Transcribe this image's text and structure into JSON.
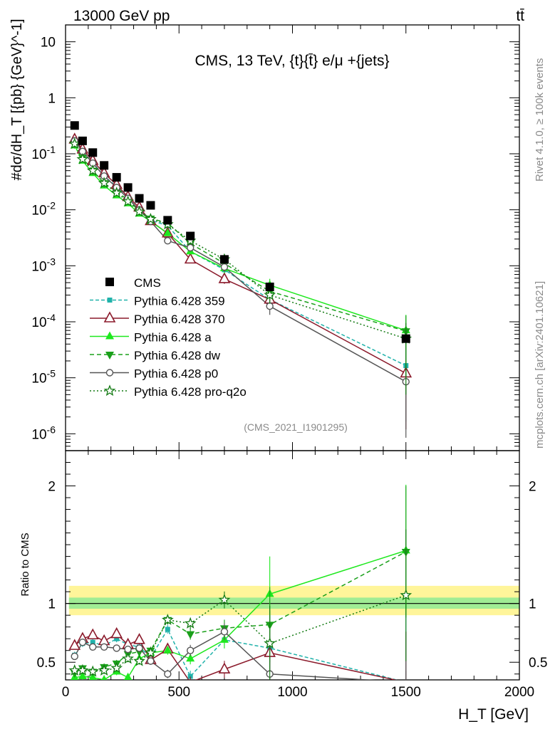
{
  "header": {
    "left": "13000 GeV pp",
    "right": "tt̄"
  },
  "side_labels": {
    "rivet": "Rivet 4.1.0, ≥ 100k events",
    "mcplots": "mcplots.cern.ch [arXiv:2401.10621]"
  },
  "chart_data": {
    "type": "line",
    "title": "CMS, 13 TeV, {t}{t̄} e/μ +{jets}",
    "analysis_tag": "(CMS_2021_I1901295)",
    "xlabel": "H_T [GeV]",
    "ylabel": "#dσ/dH_T [{pb} {GeV}^-1]",
    "ratio_ylabel": "Ratio to CMS",
    "xlim": [
      0,
      2000
    ],
    "ylim": [
      5e-07,
      20
    ],
    "yscale": "log",
    "ratio_ylim": [
      0.35,
      2.3
    ],
    "x_ticks": [
      "0",
      "500",
      "1000",
      "1500",
      "2000"
    ],
    "y_ticks": [
      "10",
      "1",
      "10^-1",
      "10^-2",
      "10^-3",
      "10^-4",
      "10^-5",
      "10^-6"
    ],
    "ratio_ticks": [
      "0.5",
      "1",
      "2"
    ],
    "x": [
      40,
      75,
      120,
      170,
      225,
      275,
      325,
      375,
      450,
      550,
      700,
      900,
      1500
    ],
    "data_series": {
      "name": "CMS",
      "values": [
        0.32,
        0.17,
        0.105,
        0.062,
        0.038,
        0.025,
        0.016,
        0.012,
        0.0065,
        0.0034,
        0.0013,
        0.00042,
        5e-05
      ]
    },
    "series": [
      {
        "name": "Pythia 6.428 359",
        "color": "#20b2aa",
        "dash": "5,3",
        "marker": "square-small",
        "values": [
          0.18,
          0.11,
          0.07,
          0.04,
          0.026,
          0.016,
          0.01,
          0.0065,
          0.0052,
          0.0018,
          0.00085,
          0.00025,
          1.65e-05
        ],
        "ratio": [
          0.56,
          0.66,
          0.67,
          0.64,
          0.7,
          0.65,
          0.63,
          0.54,
          0.78,
          0.38,
          0.69,
          0.62,
          0.33
        ]
      },
      {
        "name": "Pythia 6.428 370",
        "color": "#8b1a2b",
        "dash": "",
        "marker": "triangle-open",
        "values": [
          0.18,
          0.12,
          0.075,
          0.045,
          0.028,
          0.017,
          0.011,
          0.0063,
          0.0038,
          0.0013,
          0.00058,
          0.00025,
          1.2e-05
        ],
        "ratio": [
          0.64,
          0.7,
          0.73,
          0.68,
          0.74,
          0.65,
          0.69,
          0.52,
          0.61,
          0.33,
          0.44,
          0.58,
          0.2
        ]
      },
      {
        "name": "Pythia 6.428 a",
        "color": "#1ee81e",
        "dash": "",
        "marker": "triangle-filled",
        "values": [
          0.14,
          0.075,
          0.045,
          0.027,
          0.018,
          0.013,
          0.0085,
          0.0062,
          0.0038,
          0.0018,
          0.0009,
          0.00045,
          7e-05
        ],
        "ratio": [
          0.37,
          0.38,
          0.37,
          0.35,
          0.42,
          0.37,
          0.53,
          0.58,
          0.6,
          0.53,
          0.69,
          1.08,
          1.45
        ]
      },
      {
        "name": "Pythia 6.428 dw",
        "color": "#1aa01a",
        "dash": "6,4",
        "marker": "triangle-down-filled",
        "values": [
          0.15,
          0.085,
          0.05,
          0.03,
          0.021,
          0.015,
          0.0095,
          0.007,
          0.0058,
          0.0025,
          0.0011,
          0.00035,
          6.8e-05
        ],
        "ratio": [
          0.41,
          0.45,
          0.42,
          0.46,
          0.49,
          0.57,
          0.59,
          0.6,
          0.86,
          0.74,
          0.79,
          0.82,
          1.44
        ]
      },
      {
        "name": "Pythia 6.428 p0",
        "color": "#555555",
        "dash": "",
        "marker": "circle-open",
        "values": [
          0.17,
          0.11,
          0.068,
          0.04,
          0.025,
          0.016,
          0.01,
          0.0062,
          0.0028,
          0.0021,
          0.00095,
          0.00019,
          8.5e-06
        ],
        "ratio": [
          0.55,
          0.67,
          0.63,
          0.63,
          0.62,
          0.61,
          0.62,
          0.51,
          0.4,
          0.6,
          0.76,
          0.4,
          0.2
        ]
      },
      {
        "name": "Pythia 6.428 pro-q2o",
        "color": "#127a12",
        "dash": "2,3",
        "marker": "star",
        "values": [
          0.15,
          0.08,
          0.05,
          0.03,
          0.02,
          0.014,
          0.0092,
          0.0068,
          0.0055,
          0.0028,
          0.0013,
          0.0003,
          5e-05
        ],
        "ratio": [
          0.43,
          0.43,
          0.42,
          0.43,
          0.45,
          0.53,
          0.51,
          0.58,
          0.86,
          0.83,
          1.03,
          0.66,
          1.07
        ]
      }
    ]
  }
}
